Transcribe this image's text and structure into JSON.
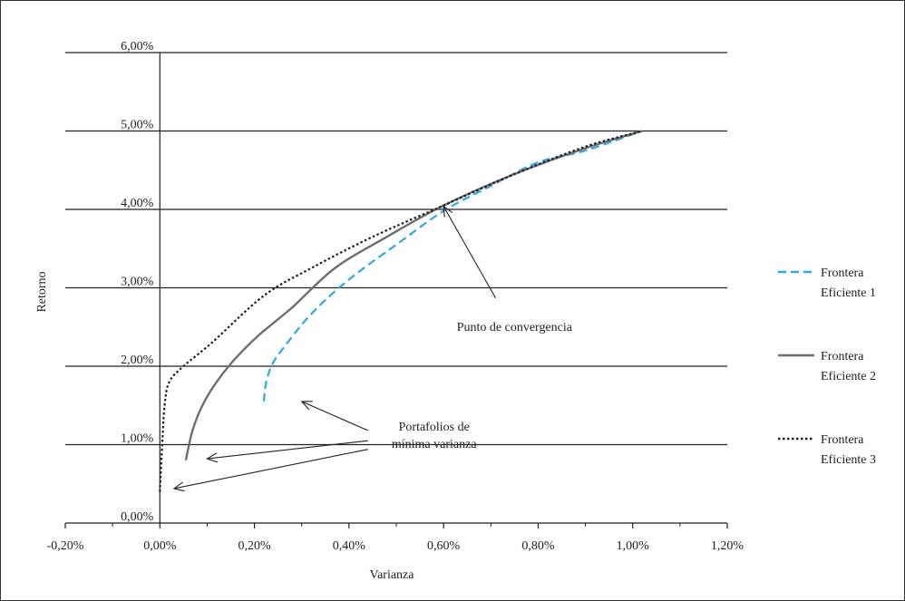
{
  "chart_data": {
    "type": "line",
    "title": "",
    "xlabel": "Varianza",
    "ylabel": "Retorno",
    "xlim": [
      -0.002,
      0.012
    ],
    "ylim": [
      0.0,
      0.06
    ],
    "x_ticks": [
      -0.002,
      0.0,
      0.002,
      0.004,
      0.006,
      0.008,
      0.01,
      0.012
    ],
    "x_tick_labels": [
      "-0,20%",
      "0,00%",
      "0,20%",
      "0,40%",
      "0,60%",
      "0,80%",
      "1,00%",
      "1,20%"
    ],
    "y_ticks": [
      0.0,
      0.01,
      0.02,
      0.03,
      0.04,
      0.05,
      0.06
    ],
    "y_tick_labels": [
      "0,00%",
      "1,00%",
      "2,00%",
      "3,00%",
      "4,00%",
      "5,00%",
      "6,00%"
    ],
    "grid": "horizontal",
    "legend_position": "right",
    "series": [
      {
        "name": "Frontera Eficiente 1",
        "legend_lines": [
          "Frontera",
          "Eficiente 1"
        ],
        "color": "#29abe2",
        "style": "dashed",
        "points": [
          [
            0.0022,
            0.0155
          ],
          [
            0.00225,
            0.018
          ],
          [
            0.0024,
            0.0205
          ],
          [
            0.0027,
            0.023
          ],
          [
            0.0031,
            0.026
          ],
          [
            0.0036,
            0.029
          ],
          [
            0.0042,
            0.032
          ],
          [
            0.005,
            0.0355
          ],
          [
            0.006,
            0.0398
          ],
          [
            0.007,
            0.043
          ],
          [
            0.008,
            0.046
          ],
          [
            0.009,
            0.0475
          ],
          [
            0.0102,
            0.05
          ]
        ]
      },
      {
        "name": "Frontera Eficiente 2",
        "legend_lines": [
          "Frontera",
          "Eficiente 2"
        ],
        "color": "#6d6e70",
        "style": "solid",
        "points": [
          [
            0.00055,
            0.008
          ],
          [
            0.0006,
            0.0095
          ],
          [
            0.0007,
            0.012
          ],
          [
            0.0009,
            0.015
          ],
          [
            0.0012,
            0.018
          ],
          [
            0.0016,
            0.021
          ],
          [
            0.0021,
            0.024
          ],
          [
            0.0028,
            0.0275
          ],
          [
            0.0037,
            0.0325
          ],
          [
            0.0048,
            0.0365
          ],
          [
            0.006,
            0.0405
          ],
          [
            0.0075,
            0.0445
          ],
          [
            0.009,
            0.0478
          ],
          [
            0.0102,
            0.05
          ]
        ]
      },
      {
        "name": "Frontera Eficiente 3",
        "legend_lines": [
          "Frontera",
          "Eficiente 3"
        ],
        "color": "#231f20",
        "style": "dotted",
        "points": [
          [
            0.0,
            0.004
          ],
          [
            5e-05,
            0.01
          ],
          [
            0.0001,
            0.015
          ],
          [
            0.0002,
            0.018
          ],
          [
            0.0005,
            0.02
          ],
          [
            0.0011,
            0.023
          ],
          [
            0.0022,
            0.029
          ],
          [
            0.0032,
            0.0325
          ],
          [
            0.0045,
            0.0365
          ],
          [
            0.006,
            0.0405
          ],
          [
            0.0075,
            0.0445
          ],
          [
            0.009,
            0.048
          ],
          [
            0.0102,
            0.05
          ]
        ]
      }
    ],
    "annotations": [
      {
        "text": "Punto de convergencia",
        "lines": [
          "Punto de convergencia"
        ],
        "text_at": [
          0.0075,
          0.0245
        ],
        "arrows": [
          {
            "from": [
              0.0071,
              0.0287
            ],
            "to": [
              0.006,
              0.0404
            ]
          }
        ]
      },
      {
        "text": "Portafolios de mínima varianza",
        "lines": [
          "Portafolios de",
          "mínima varianza"
        ],
        "text_at": [
          0.0058,
          0.0118
        ],
        "arrows": [
          {
            "from": [
              0.0044,
              0.0118
            ],
            "to": [
              0.003,
              0.0155
            ]
          },
          {
            "from": [
              0.0044,
              0.0105
            ],
            "to": [
              0.001,
              0.0082
            ]
          },
          {
            "from": [
              0.0044,
              0.0094
            ],
            "to": [
              0.0003,
              0.0044
            ]
          }
        ]
      }
    ]
  }
}
